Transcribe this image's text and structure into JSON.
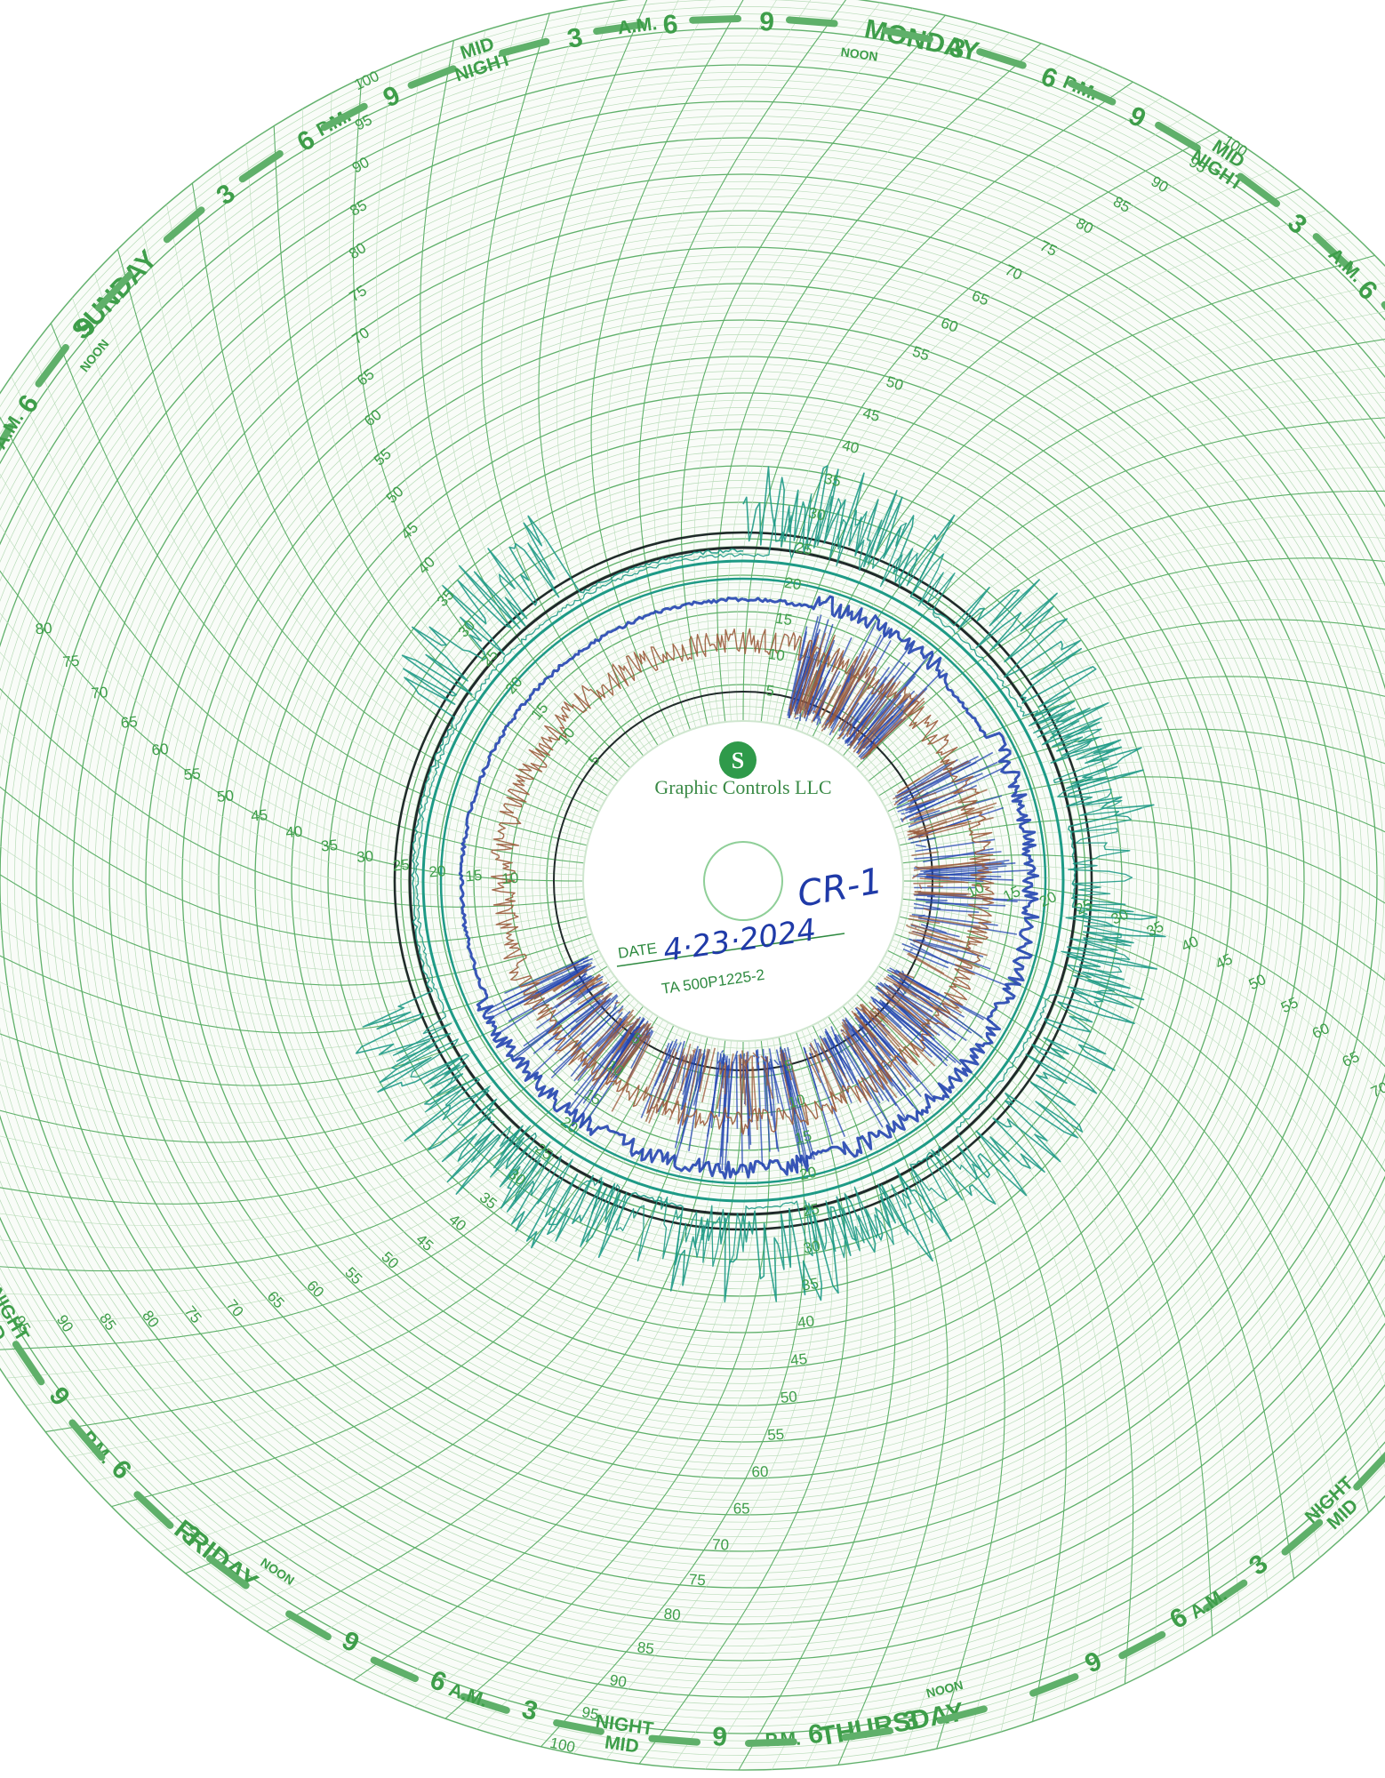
{
  "chart_face": {
    "days": [
      "MONDAY",
      "SUNDAY",
      "FRIDAY",
      "THURSDAY"
    ],
    "noon_label": "NOON",
    "midnight_label": [
      "MID",
      "NIGHT"
    ],
    "pm_label": "P.M.",
    "am_label": "A.M.",
    "hour_marks": [
      "3",
      "6",
      "9"
    ],
    "radial_scale": [
      "5",
      "10",
      "15",
      "20",
      "25",
      "30",
      "35",
      "40",
      "45",
      "50",
      "55",
      "60",
      "65",
      "70",
      "75",
      "80",
      "85",
      "90",
      "95",
      "100"
    ],
    "side_scale": [
      "10",
      "15",
      "20",
      "25",
      "30",
      "35",
      "40",
      "45",
      "50",
      "55",
      "60",
      "65",
      "70",
      "75",
      "80"
    ]
  },
  "hub": {
    "maker": "Graphic Controls LLC",
    "date_label": "DATE",
    "date_value": "4·23·2024",
    "chart_id": "CR-1",
    "part_number": "TA 500P1225-2"
  },
  "colors": {
    "grid": "#5fb06a",
    "grid_light": "#b9dcb9",
    "label": "#3e9e4a",
    "pen_teal": "#1e9a86",
    "pen_blue": "#2244b0",
    "pen_brown": "#9a5a3a",
    "pen_black": "#202a2a"
  }
}
